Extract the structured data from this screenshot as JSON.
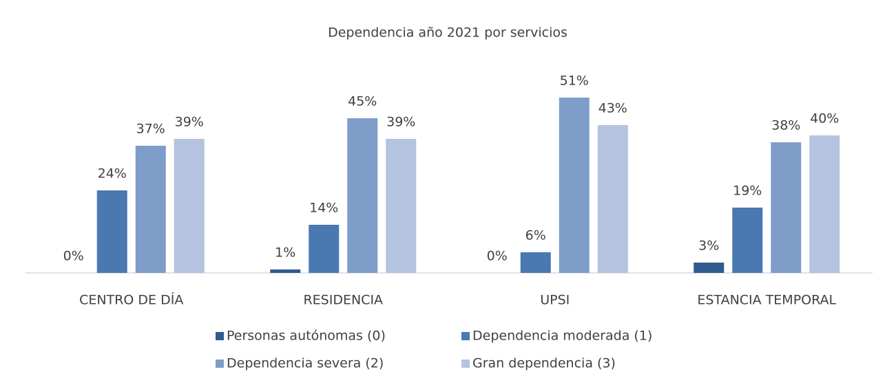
{
  "chart_data": {
    "type": "bar",
    "title": "Dependencia año 2021 por servicios",
    "categories": [
      "CENTRO DE DÍA",
      "RESIDENCIA",
      "UPSI",
      "ESTANCIA TEMPORAL"
    ],
    "series": [
      {
        "name": "Personas autónomas (0)",
        "color": "#2f5b8f",
        "values": [
          0,
          1,
          0,
          3
        ],
        "value_labels": [
          "0%",
          "1%",
          "0%",
          "3%"
        ]
      },
      {
        "name": "Dependencia moderada (1)",
        "color": "#4a78b0",
        "values": [
          24,
          14,
          6,
          19
        ],
        "value_labels": [
          "24%",
          "14%",
          "6%",
          "19%"
        ]
      },
      {
        "name": "Dependencia severa (2)",
        "color": "#7f9dc9",
        "values": [
          37,
          45,
          51,
          38
        ],
        "value_labels": [
          "37%",
          "45%",
          "51%",
          "38%"
        ]
      },
      {
        "name": "Gran dependencia (3)",
        "color": "#b4c3e0",
        "values": [
          39,
          39,
          43,
          40
        ],
        "value_labels": [
          "39%",
          "39%",
          "43%",
          "40%"
        ]
      }
    ],
    "legend": "bottom"
  }
}
